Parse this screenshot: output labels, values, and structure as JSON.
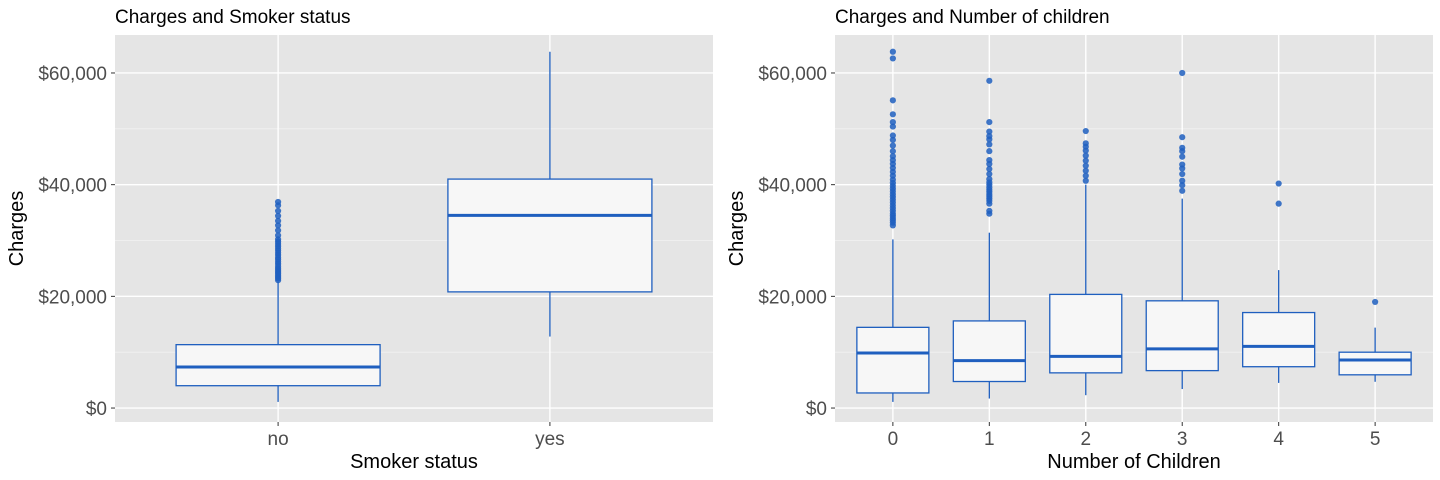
{
  "chart_data": [
    {
      "type": "box",
      "title": "Charges and Smoker status",
      "xlabel": "Smoker status",
      "ylabel": "Charges",
      "ylim": [
        -2500,
        66800
      ],
      "yticks": [
        0,
        20000,
        40000,
        60000
      ],
      "ytick_labels": [
        "$0",
        "$20,000",
        "$40,000",
        "$60,000"
      ],
      "grid": true,
      "color": "#1f5fbf",
      "fill": "#f7f7f7",
      "categories": [
        "no",
        "yes"
      ],
      "boxes": [
        {
          "category": "no",
          "whisker_low": 1100,
          "q1": 4000,
          "median": 7350,
          "q3": 11350,
          "whisker_high": 22600,
          "outliers": [
            22900,
            23200,
            23500,
            23800,
            24100,
            24400,
            24700,
            25000,
            25400,
            25800,
            26200,
            26600,
            27000,
            27400,
            27800,
            28200,
            28600,
            29000,
            29400,
            29800,
            30200,
            30900,
            31800,
            32700,
            33500,
            34400,
            35300,
            36300,
            36900
          ]
        },
        {
          "category": "yes",
          "whisker_low": 12800,
          "q1": 20800,
          "median": 34500,
          "q3": 41000,
          "whisker_high": 63800,
          "outliers": []
        }
      ]
    },
    {
      "type": "box",
      "title": "Charges and Number of children",
      "xlabel": "Number of Children",
      "ylabel": "Charges",
      "ylim": [
        -2500,
        66800
      ],
      "yticks": [
        0,
        20000,
        40000,
        60000
      ],
      "ytick_labels": [
        "$0",
        "$20,000",
        "$40,000",
        "$60,000"
      ],
      "grid": true,
      "color": "#1f5fbf",
      "fill": "#f7f7f7",
      "categories": [
        "0",
        "1",
        "2",
        "3",
        "4",
        "5"
      ],
      "boxes": [
        {
          "category": "0",
          "whisker_low": 1100,
          "q1": 2700,
          "median": 9850,
          "q3": 14450,
          "whisker_high": 30200,
          "outliers": [
            32700,
            33200,
            33600,
            34000,
            34400,
            34800,
            35300,
            35800,
            36300,
            36800,
            37300,
            37800,
            38300,
            38800,
            39300,
            39800,
            40300,
            40900,
            41600,
            42300,
            43000,
            43700,
            44400,
            45100,
            46000,
            47000,
            48000,
            48800,
            50400,
            51200,
            52600,
            55100,
            62600,
            63800
          ]
        },
        {
          "category": "1",
          "whisker_low": 1700,
          "q1": 4750,
          "median": 8500,
          "q3": 15600,
          "whisker_high": 31400,
          "outliers": [
            34800,
            35300,
            36600,
            37100,
            37500,
            37900,
            38300,
            38700,
            39100,
            39500,
            40000,
            40400,
            41000,
            41900,
            42800,
            43700,
            44400,
            46000,
            47200,
            48100,
            48700,
            49500,
            51200,
            58600
          ]
        },
        {
          "category": "2",
          "whisker_low": 2300,
          "q1": 6300,
          "median": 9250,
          "q3": 20350,
          "whisker_high": 40000,
          "outliers": [
            40700,
            41600,
            42500,
            43400,
            44300,
            45200,
            46100,
            46800,
            47400,
            49600
          ]
        },
        {
          "category": "3",
          "whisker_low": 3400,
          "q1": 6700,
          "median": 10600,
          "q3": 19200,
          "whisker_high": 37500,
          "outliers": [
            38900,
            39900,
            40700,
            41900,
            42900,
            43600,
            45000,
            46000,
            46600,
            48500,
            60000
          ]
        },
        {
          "category": "4",
          "whisker_low": 4500,
          "q1": 7400,
          "median": 11050,
          "q3": 17100,
          "whisker_high": 24700,
          "outliers": [
            36600,
            40200
          ]
        },
        {
          "category": "5",
          "whisker_low": 4700,
          "q1": 5950,
          "median": 8600,
          "q3": 10000,
          "whisker_high": 14400,
          "outliers": [
            19000
          ]
        }
      ]
    }
  ]
}
